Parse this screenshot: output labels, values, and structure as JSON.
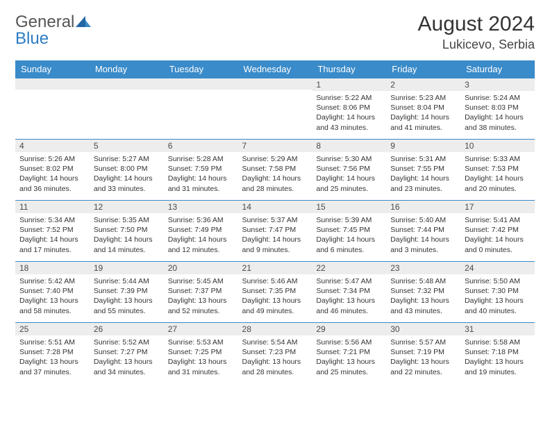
{
  "logo": {
    "line1": "General",
    "line2": "Blue"
  },
  "title": "August 2024",
  "location": "Lukicevo, Serbia",
  "colors": {
    "header_bg": "#3a8bc9",
    "header_fg": "#ffffff",
    "daynum_bg": "#ededed",
    "rule": "#3a8bc9",
    "logo_gray": "#555555",
    "logo_blue": "#2d7cc1"
  },
  "weekdays": [
    "Sunday",
    "Monday",
    "Tuesday",
    "Wednesday",
    "Thursday",
    "Friday",
    "Saturday"
  ],
  "weeks": [
    [
      {
        "n": "",
        "sr": "",
        "ss": "",
        "dl": ""
      },
      {
        "n": "",
        "sr": "",
        "ss": "",
        "dl": ""
      },
      {
        "n": "",
        "sr": "",
        "ss": "",
        "dl": ""
      },
      {
        "n": "",
        "sr": "",
        "ss": "",
        "dl": ""
      },
      {
        "n": "1",
        "sr": "Sunrise: 5:22 AM",
        "ss": "Sunset: 8:06 PM",
        "dl": "Daylight: 14 hours and 43 minutes."
      },
      {
        "n": "2",
        "sr": "Sunrise: 5:23 AM",
        "ss": "Sunset: 8:04 PM",
        "dl": "Daylight: 14 hours and 41 minutes."
      },
      {
        "n": "3",
        "sr": "Sunrise: 5:24 AM",
        "ss": "Sunset: 8:03 PM",
        "dl": "Daylight: 14 hours and 38 minutes."
      }
    ],
    [
      {
        "n": "4",
        "sr": "Sunrise: 5:26 AM",
        "ss": "Sunset: 8:02 PM",
        "dl": "Daylight: 14 hours and 36 minutes."
      },
      {
        "n": "5",
        "sr": "Sunrise: 5:27 AM",
        "ss": "Sunset: 8:00 PM",
        "dl": "Daylight: 14 hours and 33 minutes."
      },
      {
        "n": "6",
        "sr": "Sunrise: 5:28 AM",
        "ss": "Sunset: 7:59 PM",
        "dl": "Daylight: 14 hours and 31 minutes."
      },
      {
        "n": "7",
        "sr": "Sunrise: 5:29 AM",
        "ss": "Sunset: 7:58 PM",
        "dl": "Daylight: 14 hours and 28 minutes."
      },
      {
        "n": "8",
        "sr": "Sunrise: 5:30 AM",
        "ss": "Sunset: 7:56 PM",
        "dl": "Daylight: 14 hours and 25 minutes."
      },
      {
        "n": "9",
        "sr": "Sunrise: 5:31 AM",
        "ss": "Sunset: 7:55 PM",
        "dl": "Daylight: 14 hours and 23 minutes."
      },
      {
        "n": "10",
        "sr": "Sunrise: 5:33 AM",
        "ss": "Sunset: 7:53 PM",
        "dl": "Daylight: 14 hours and 20 minutes."
      }
    ],
    [
      {
        "n": "11",
        "sr": "Sunrise: 5:34 AM",
        "ss": "Sunset: 7:52 PM",
        "dl": "Daylight: 14 hours and 17 minutes."
      },
      {
        "n": "12",
        "sr": "Sunrise: 5:35 AM",
        "ss": "Sunset: 7:50 PM",
        "dl": "Daylight: 14 hours and 14 minutes."
      },
      {
        "n": "13",
        "sr": "Sunrise: 5:36 AM",
        "ss": "Sunset: 7:49 PM",
        "dl": "Daylight: 14 hours and 12 minutes."
      },
      {
        "n": "14",
        "sr": "Sunrise: 5:37 AM",
        "ss": "Sunset: 7:47 PM",
        "dl": "Daylight: 14 hours and 9 minutes."
      },
      {
        "n": "15",
        "sr": "Sunrise: 5:39 AM",
        "ss": "Sunset: 7:45 PM",
        "dl": "Daylight: 14 hours and 6 minutes."
      },
      {
        "n": "16",
        "sr": "Sunrise: 5:40 AM",
        "ss": "Sunset: 7:44 PM",
        "dl": "Daylight: 14 hours and 3 minutes."
      },
      {
        "n": "17",
        "sr": "Sunrise: 5:41 AM",
        "ss": "Sunset: 7:42 PM",
        "dl": "Daylight: 14 hours and 0 minutes."
      }
    ],
    [
      {
        "n": "18",
        "sr": "Sunrise: 5:42 AM",
        "ss": "Sunset: 7:40 PM",
        "dl": "Daylight: 13 hours and 58 minutes."
      },
      {
        "n": "19",
        "sr": "Sunrise: 5:44 AM",
        "ss": "Sunset: 7:39 PM",
        "dl": "Daylight: 13 hours and 55 minutes."
      },
      {
        "n": "20",
        "sr": "Sunrise: 5:45 AM",
        "ss": "Sunset: 7:37 PM",
        "dl": "Daylight: 13 hours and 52 minutes."
      },
      {
        "n": "21",
        "sr": "Sunrise: 5:46 AM",
        "ss": "Sunset: 7:35 PM",
        "dl": "Daylight: 13 hours and 49 minutes."
      },
      {
        "n": "22",
        "sr": "Sunrise: 5:47 AM",
        "ss": "Sunset: 7:34 PM",
        "dl": "Daylight: 13 hours and 46 minutes."
      },
      {
        "n": "23",
        "sr": "Sunrise: 5:48 AM",
        "ss": "Sunset: 7:32 PM",
        "dl": "Daylight: 13 hours and 43 minutes."
      },
      {
        "n": "24",
        "sr": "Sunrise: 5:50 AM",
        "ss": "Sunset: 7:30 PM",
        "dl": "Daylight: 13 hours and 40 minutes."
      }
    ],
    [
      {
        "n": "25",
        "sr": "Sunrise: 5:51 AM",
        "ss": "Sunset: 7:28 PM",
        "dl": "Daylight: 13 hours and 37 minutes."
      },
      {
        "n": "26",
        "sr": "Sunrise: 5:52 AM",
        "ss": "Sunset: 7:27 PM",
        "dl": "Daylight: 13 hours and 34 minutes."
      },
      {
        "n": "27",
        "sr": "Sunrise: 5:53 AM",
        "ss": "Sunset: 7:25 PM",
        "dl": "Daylight: 13 hours and 31 minutes."
      },
      {
        "n": "28",
        "sr": "Sunrise: 5:54 AM",
        "ss": "Sunset: 7:23 PM",
        "dl": "Daylight: 13 hours and 28 minutes."
      },
      {
        "n": "29",
        "sr": "Sunrise: 5:56 AM",
        "ss": "Sunset: 7:21 PM",
        "dl": "Daylight: 13 hours and 25 minutes."
      },
      {
        "n": "30",
        "sr": "Sunrise: 5:57 AM",
        "ss": "Sunset: 7:19 PM",
        "dl": "Daylight: 13 hours and 22 minutes."
      },
      {
        "n": "31",
        "sr": "Sunrise: 5:58 AM",
        "ss": "Sunset: 7:18 PM",
        "dl": "Daylight: 13 hours and 19 minutes."
      }
    ]
  ]
}
